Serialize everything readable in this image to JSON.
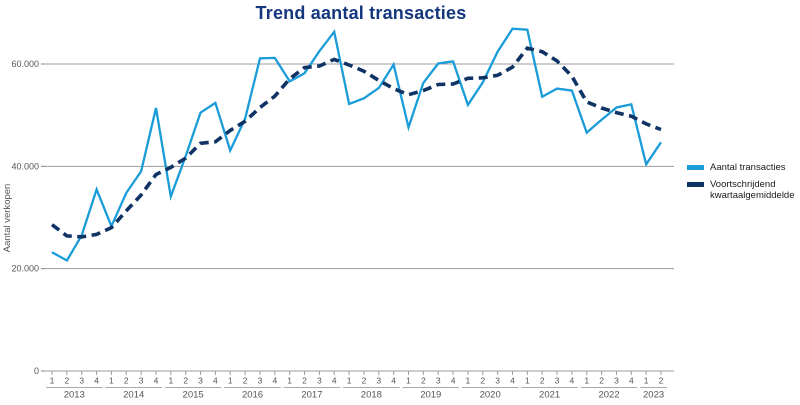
{
  "title": "Trend aantal transacties",
  "colors": {
    "title": "#14377E",
    "series_transactions": "#1A9CD8",
    "series_moving_average": "#0F3365",
    "gridline": "#9C9C9C",
    "axis_text": "#555555",
    "legend_text": "#1a1a1a",
    "background": "#ffffff"
  },
  "legend": [
    {
      "label": "Aantal transacties",
      "color": "#1A9CD8",
      "style": "solid"
    },
    {
      "label": "Voortschrijdend kwartaalgemiddelde",
      "color": "#0F3365",
      "style": "dashed"
    }
  ],
  "x_axis": {
    "years": [
      {
        "label": "2013",
        "quarters": [
          "1",
          "2",
          "3",
          "4"
        ]
      },
      {
        "label": "2014",
        "quarters": [
          "1",
          "2",
          "3",
          "4"
        ]
      },
      {
        "label": "2015",
        "quarters": [
          "1",
          "2",
          "3",
          "4"
        ]
      },
      {
        "label": "2016",
        "quarters": [
          "1",
          "2",
          "3",
          "4"
        ]
      },
      {
        "label": "2017",
        "quarters": [
          "1",
          "2",
          "3",
          "4"
        ]
      },
      {
        "label": "2018",
        "quarters": [
          "1",
          "2",
          "3",
          "4"
        ]
      },
      {
        "label": "2019",
        "quarters": [
          "1",
          "2",
          "3",
          "4"
        ]
      },
      {
        "label": "2020",
        "quarters": [
          "1",
          "2",
          "3",
          "4"
        ]
      },
      {
        "label": "2021",
        "quarters": [
          "1",
          "2",
          "3",
          "4"
        ]
      },
      {
        "label": "2022",
        "quarters": [
          "1",
          "2",
          "3",
          "4"
        ]
      },
      {
        "label": "2023",
        "quarters": [
          "1",
          "2"
        ]
      }
    ]
  },
  "y_axis": {
    "label": "Aantal verkopen",
    "tick_values": [
      0,
      20000,
      40000,
      60000
    ],
    "tick_labels": [
      "0",
      "20.000",
      "40.000",
      "60.000"
    ]
  },
  "chart_data": {
    "type": "line",
    "title": "Trend aantal transacties",
    "xlabel": "",
    "ylabel": "Aantal verkopen",
    "ylim": [
      0,
      70000
    ],
    "yticks": [
      0,
      20000,
      40000,
      60000
    ],
    "ytick_labels": [
      "0",
      "20.000",
      "40.000",
      "60.000"
    ],
    "grid": true,
    "legend_position": "right",
    "x": [
      "2013Q1",
      "2013Q2",
      "2013Q3",
      "2013Q4",
      "2014Q1",
      "2014Q2",
      "2014Q3",
      "2014Q4",
      "2015Q1",
      "2015Q2",
      "2015Q3",
      "2015Q4",
      "2016Q1",
      "2016Q2",
      "2016Q3",
      "2016Q4",
      "2017Q1",
      "2017Q2",
      "2017Q3",
      "2017Q4",
      "2018Q1",
      "2018Q2",
      "2018Q3",
      "2018Q4",
      "2019Q1",
      "2019Q2",
      "2019Q3",
      "2019Q4",
      "2020Q1",
      "2020Q2",
      "2020Q3",
      "2020Q4",
      "2021Q1",
      "2021Q2",
      "2021Q3",
      "2021Q4",
      "2022Q1",
      "2022Q2",
      "2022Q3",
      "2022Q4",
      "2023Q1",
      "2023Q2"
    ],
    "series": [
      {
        "name": "Aantal transacties",
        "style": "solid",
        "color": "#1A9CD8",
        "values": [
          23200,
          21600,
          26500,
          35500,
          28300,
          34800,
          39000,
          51400,
          34100,
          42000,
          50500,
          52400,
          43100,
          49300,
          61100,
          61200,
          56600,
          58200,
          62500,
          66300,
          52200,
          53300,
          55300,
          59900,
          47600,
          56300,
          60100,
          60500,
          52000,
          56400,
          62400,
          66900,
          66700,
          53600,
          55200,
          54800,
          46600,
          49100,
          51500,
          52100,
          40400,
          44700
        ]
      },
      {
        "name": "Voortschrijdend kwartaalgemiddelde",
        "style": "dashed",
        "color": "#0F3365",
        "values": [
          28600,
          26400,
          26200,
          26700,
          28000,
          31300,
          34400,
          38400,
          39800,
          41600,
          44500,
          44800,
          47000,
          48800,
          51500,
          53700,
          57100,
          59300,
          59600,
          60900,
          59800,
          58600,
          56800,
          55200,
          54000,
          54800,
          56000,
          56100,
          57200,
          57300,
          57800,
          59400,
          63100,
          62400,
          60600,
          57600,
          52600,
          51400,
          50500,
          49800,
          48300,
          47200
        ]
      }
    ]
  }
}
